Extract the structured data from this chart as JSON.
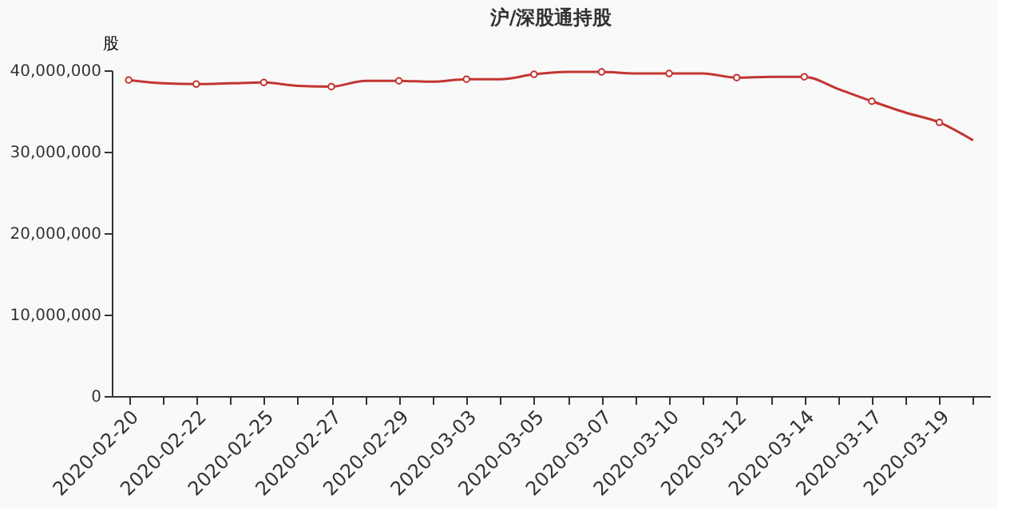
{
  "chart_data": {
    "type": "line",
    "title": "沪/深股通持股",
    "ylabel": "股",
    "categories": [
      "2020-02-20",
      null,
      "2020-02-22",
      null,
      "2020-02-25",
      null,
      "2020-02-27",
      null,
      "2020-02-29",
      null,
      "2020-03-03",
      null,
      "2020-03-05",
      null,
      "2020-03-07",
      null,
      "2020-03-10",
      null,
      "2020-03-12",
      null,
      "2020-03-14",
      null,
      "2020-03-17",
      null,
      "2020-03-19",
      null
    ],
    "series": [
      {
        "color": "#c23531",
        "values": [
          38800000,
          38400000,
          38300000,
          38400000,
          38500000,
          38100000,
          38000000,
          38700000,
          38700000,
          38600000,
          38900000,
          38900000,
          39500000,
          39800000,
          39800000,
          39600000,
          39600000,
          39600000,
          39100000,
          39200000,
          39200000,
          37700000,
          36200000,
          34800000,
          33600000,
          31400000
        ]
      }
    ],
    "ylim": [
      0,
      40000000
    ],
    "yticks": [
      {
        "value": 0,
        "label": "0"
      },
      {
        "value": 10000000,
        "label": "10,000,000"
      },
      {
        "value": 20000000,
        "label": "20,000,000"
      },
      {
        "value": 30000000,
        "label": "30,000,000"
      },
      {
        "value": 40000000,
        "label": "40,000,000"
      }
    ],
    "marker": "circle",
    "line_style": "solid"
  }
}
